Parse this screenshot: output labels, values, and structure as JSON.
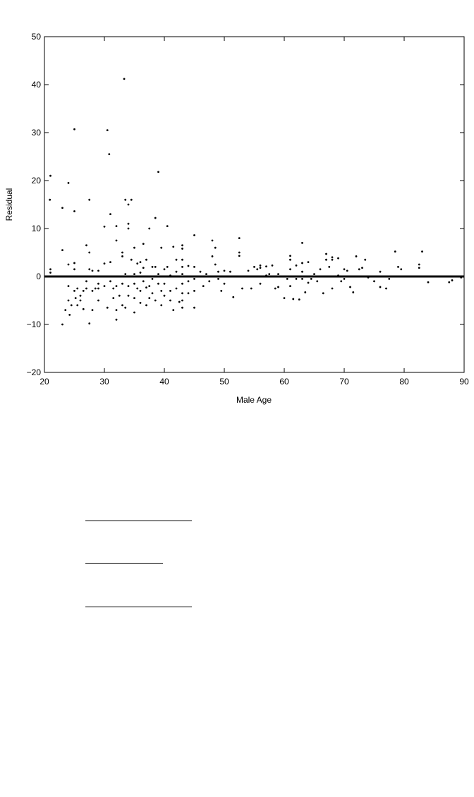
{
  "chart_data": {
    "type": "scatter",
    "xlabel": "Male Age",
    "ylabel": "Residual",
    "xlim": [
      20,
      90
    ],
    "ylim": [
      -20,
      50
    ],
    "xticks": [
      20,
      30,
      40,
      50,
      60,
      70,
      80,
      90
    ],
    "yticks": [
      -20,
      -10,
      0,
      10,
      20,
      30,
      40,
      50
    ],
    "xtick_labels": [
      "20",
      "30",
      "40",
      "50",
      "60",
      "70",
      "80",
      "90"
    ],
    "ytick_labels": [
      "−20",
      "−10",
      "0",
      "10",
      "20",
      "30",
      "40",
      "50"
    ],
    "grid": false,
    "reference_line": {
      "y": 0,
      "thick": true
    },
    "point_color": "#000000",
    "points": [
      [
        21,
        21
      ],
      [
        20.9,
        16
      ],
      [
        21,
        1.5
      ],
      [
        21,
        0.8
      ],
      [
        23,
        14.3
      ],
      [
        23,
        5.5
      ],
      [
        23,
        -10
      ],
      [
        23.5,
        -7
      ],
      [
        24,
        19.5
      ],
      [
        24,
        2.5
      ],
      [
        24,
        -2
      ],
      [
        24,
        -5
      ],
      [
        24.2,
        -8
      ],
      [
        24.5,
        -6
      ],
      [
        25,
        30.7
      ],
      [
        25,
        13.6
      ],
      [
        25,
        2.8
      ],
      [
        25,
        1.5
      ],
      [
        25,
        -3
      ],
      [
        25.2,
        -4.5
      ],
      [
        25.5,
        -6
      ],
      [
        25.5,
        -2.5
      ],
      [
        26,
        -4
      ],
      [
        26,
        -5
      ],
      [
        26.5,
        -6.8
      ],
      [
        26.5,
        -3
      ],
      [
        27,
        6.5
      ],
      [
        27,
        -1
      ],
      [
        27,
        -2.5
      ],
      [
        27.5,
        16
      ],
      [
        27.5,
        5
      ],
      [
        27.5,
        1.5
      ],
      [
        27.5,
        -9.8
      ],
      [
        28,
        -3
      ],
      [
        28,
        -7
      ],
      [
        28,
        1.2
      ],
      [
        28.5,
        -2.5
      ],
      [
        29,
        -2.5
      ],
      [
        29,
        -5
      ],
      [
        29,
        -1.5
      ],
      [
        29,
        1.2
      ],
      [
        30,
        10.4
      ],
      [
        30,
        2.7
      ],
      [
        30,
        -2
      ],
      [
        30.5,
        -6.5
      ],
      [
        30.5,
        30.5
      ],
      [
        30.8,
        25.5
      ],
      [
        31,
        13
      ],
      [
        31,
        3
      ],
      [
        31,
        -1
      ],
      [
        31.5,
        -4.5
      ],
      [
        31.5,
        -2.5
      ],
      [
        32,
        10.5
      ],
      [
        32,
        7.5
      ],
      [
        32,
        -2
      ],
      [
        32,
        -7
      ],
      [
        32,
        -9
      ],
      [
        32.5,
        -4
      ],
      [
        33,
        5
      ],
      [
        33,
        4.2
      ],
      [
        33,
        -1.5
      ],
      [
        33,
        -6
      ],
      [
        33.3,
        41.2
      ],
      [
        33.5,
        16
      ],
      [
        33.5,
        0.5
      ],
      [
        33.5,
        -6.5
      ],
      [
        34,
        15
      ],
      [
        34,
        11
      ],
      [
        34,
        10
      ],
      [
        34,
        -2
      ],
      [
        34,
        -4
      ],
      [
        34.5,
        16
      ],
      [
        34.5,
        3.5
      ],
      [
        35,
        6
      ],
      [
        35,
        0.5
      ],
      [
        35,
        -1.5
      ],
      [
        35,
        -4.5
      ],
      [
        35,
        -7.5
      ],
      [
        35.5,
        2.7
      ],
      [
        35.5,
        -2.5
      ],
      [
        36,
        3
      ],
      [
        36,
        0.8
      ],
      [
        36,
        -3
      ],
      [
        36,
        -5.5
      ],
      [
        36.5,
        6.8
      ],
      [
        36.5,
        1.8
      ],
      [
        36.5,
        -1
      ],
      [
        37,
        3.5
      ],
      [
        37,
        -2.3
      ],
      [
        37,
        -6
      ],
      [
        37.5,
        10
      ],
      [
        37.5,
        -2
      ],
      [
        37.5,
        -4.5
      ],
      [
        38,
        2
      ],
      [
        38,
        -0.5
      ],
      [
        38,
        -3.5
      ],
      [
        38.5,
        12.2
      ],
      [
        38.5,
        2
      ],
      [
        38.5,
        -5
      ],
      [
        39,
        21.8
      ],
      [
        39,
        0.5
      ],
      [
        39,
        -1.5
      ],
      [
        39.5,
        6
      ],
      [
        39.5,
        -3
      ],
      [
        39.5,
        -6
      ],
      [
        40,
        1.5
      ],
      [
        40,
        -1.5
      ],
      [
        40,
        -4
      ],
      [
        40.5,
        10.5
      ],
      [
        40.5,
        2
      ],
      [
        41,
        0.2
      ],
      [
        41,
        -3
      ],
      [
        41,
        -5
      ],
      [
        41.5,
        6.2
      ],
      [
        41.5,
        -7
      ],
      [
        42,
        3.5
      ],
      [
        42,
        1
      ],
      [
        42,
        -2.5
      ],
      [
        42.5,
        -5.3
      ],
      [
        43,
        6.5
      ],
      [
        43,
        5.8
      ],
      [
        43,
        3.5
      ],
      [
        43,
        2
      ],
      [
        43,
        0.5
      ],
      [
        43,
        -1.5
      ],
      [
        43,
        -3.5
      ],
      [
        43,
        -5
      ],
      [
        43,
        -6.5
      ],
      [
        44,
        2.2
      ],
      [
        44,
        -1
      ],
      [
        44,
        -3.5
      ],
      [
        45,
        8.6
      ],
      [
        45,
        2
      ],
      [
        45,
        -0.5
      ],
      [
        45,
        -3
      ],
      [
        45,
        -6.5
      ],
      [
        46,
        1
      ],
      [
        46.5,
        -2
      ],
      [
        47,
        0.5
      ],
      [
        47.5,
        -1
      ],
      [
        48,
        7.5
      ],
      [
        48,
        4.2
      ],
      [
        48.5,
        6
      ],
      [
        48.5,
        2.5
      ],
      [
        49,
        1
      ],
      [
        49,
        -0.5
      ],
      [
        49.5,
        -3
      ],
      [
        50,
        1.2
      ],
      [
        50,
        -1.5
      ],
      [
        51,
        1
      ],
      [
        51.5,
        -4.3
      ],
      [
        52.5,
        5
      ],
      [
        52.5,
        4.3
      ],
      [
        52.5,
        8
      ],
      [
        53,
        -2.5
      ],
      [
        54,
        1.2
      ],
      [
        54.5,
        -2.5
      ],
      [
        55,
        2
      ],
      [
        55.5,
        1.5
      ],
      [
        56,
        2.3
      ],
      [
        56,
        1.8
      ],
      [
        56,
        -1.5
      ],
      [
        57,
        2.1
      ],
      [
        57,
        0.2
      ],
      [
        57.5,
        0.5
      ],
      [
        58,
        2.3
      ],
      [
        58.5,
        -2.5
      ],
      [
        59,
        0.5
      ],
      [
        59,
        -2.2
      ],
      [
        60,
        -4.5
      ],
      [
        60.5,
        -0.5
      ],
      [
        61,
        4.3
      ],
      [
        61,
        3.5
      ],
      [
        61,
        1.5
      ],
      [
        61,
        -2
      ],
      [
        61.5,
        -4.7
      ],
      [
        62,
        2.3
      ],
      [
        62,
        -0.5
      ],
      [
        62.5,
        -4.8
      ],
      [
        63,
        7
      ],
      [
        63,
        2.8
      ],
      [
        63,
        1
      ],
      [
        63,
        -0.5
      ],
      [
        63.5,
        -3.3
      ],
      [
        64,
        3
      ],
      [
        64,
        -1.3
      ],
      [
        64.5,
        -0.5
      ],
      [
        65,
        0.5
      ],
      [
        65.5,
        -1
      ],
      [
        66,
        1.5
      ],
      [
        66.5,
        -3.5
      ],
      [
        67,
        4.7
      ],
      [
        67,
        3.5
      ],
      [
        67.5,
        2
      ],
      [
        68,
        4
      ],
      [
        68,
        3.5
      ],
      [
        68,
        -2.5
      ],
      [
        69,
        0.2
      ],
      [
        69,
        3.8
      ],
      [
        69.5,
        -1
      ],
      [
        70,
        1.5
      ],
      [
        70,
        -0.5
      ],
      [
        70.5,
        1.2
      ],
      [
        71,
        -2.2
      ],
      [
        71.5,
        -3.3
      ],
      [
        72,
        4.2
      ],
      [
        72.5,
        1.5
      ],
      [
        73,
        1.8
      ],
      [
        73.5,
        3.5
      ],
      [
        74,
        -0.2
      ],
      [
        75,
        -1
      ],
      [
        76,
        1
      ],
      [
        76,
        -2.2
      ],
      [
        77,
        -2.5
      ],
      [
        77.5,
        -0.5
      ],
      [
        78.5,
        5.2
      ],
      [
        79,
        2
      ],
      [
        79.5,
        1.5
      ],
      [
        82.5,
        2.5
      ],
      [
        82.5,
        1.8
      ],
      [
        83,
        5.2
      ],
      [
        84,
        -1.2
      ],
      [
        87.5,
        -1.2
      ],
      [
        88,
        -0.8
      ],
      [
        89.5,
        -0.2
      ]
    ]
  },
  "fill_in_blanks": {
    "count": 3
  }
}
